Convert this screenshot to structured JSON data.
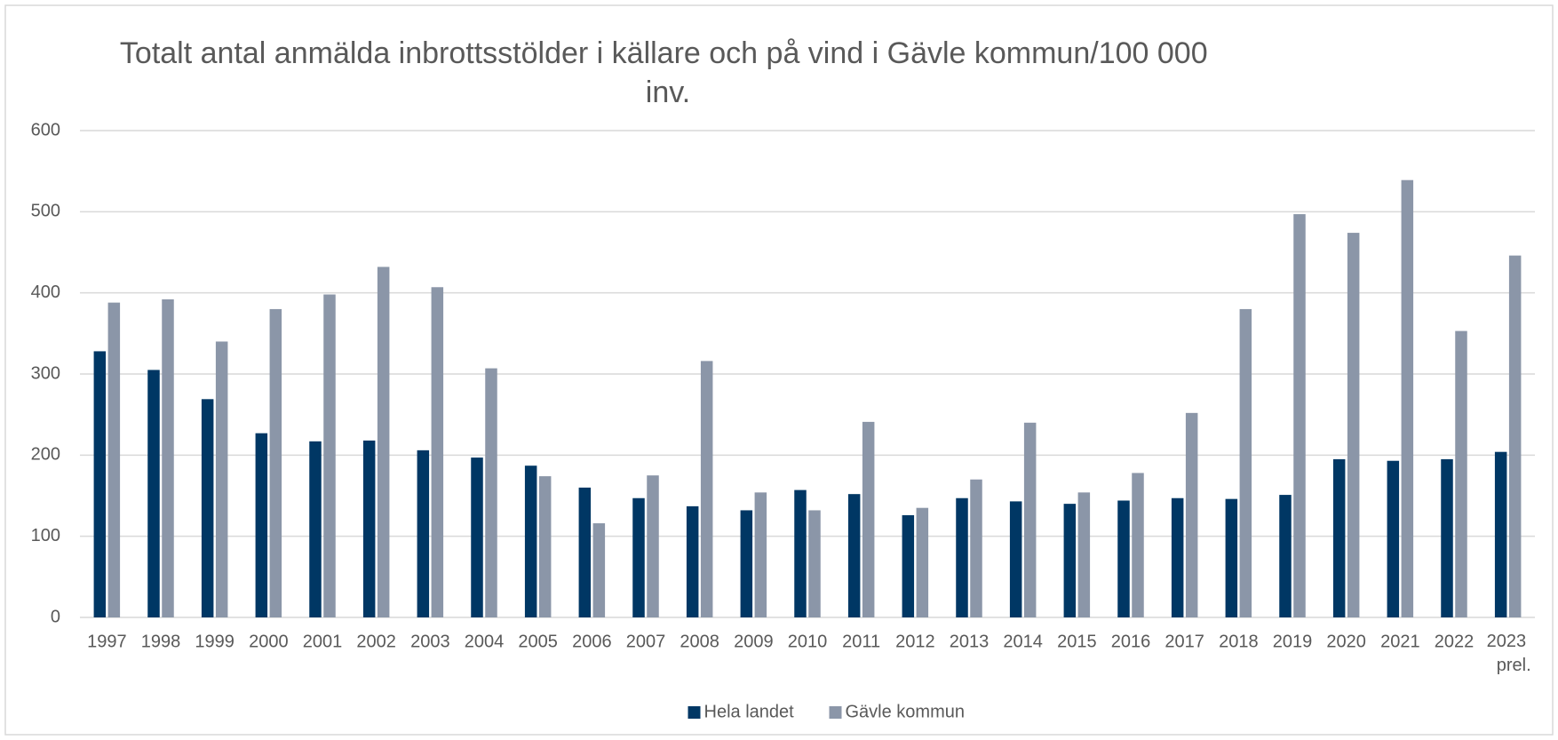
{
  "chart_data": {
    "type": "bar",
    "title": "Totalt antal anmälda inbrottsstölder i källare och på vind i Gävle kommun/100 000 inv.",
    "categories": [
      "1997",
      "1998",
      "1999",
      "2000",
      "2001",
      "2002",
      "2003",
      "2004",
      "2005",
      "2006",
      "2007",
      "2008",
      "2009",
      "2010",
      "2011",
      "2012",
      "2013",
      "2014",
      "2015",
      "2016",
      "2017",
      "2018",
      "2019",
      "2020",
      "2021",
      "2022",
      "2023 prel."
    ],
    "series": [
      {
        "name": "Hela landet",
        "color": "#003764",
        "values": [
          328,
          305,
          269,
          227,
          217,
          218,
          206,
          197,
          187,
          160,
          147,
          137,
          132,
          157,
          152,
          126,
          147,
          143,
          140,
          144,
          147,
          146,
          151,
          195,
          193,
          195,
          204
        ]
      },
      {
        "name": "Gävle kommun",
        "color": "#8b96a8",
        "values": [
          388,
          392,
          340,
          380,
          398,
          432,
          407,
          307,
          174,
          116,
          175,
          316,
          154,
          132,
          241,
          135,
          170,
          240,
          154,
          178,
          252,
          380,
          497,
          474,
          539,
          353,
          446
        ]
      }
    ],
    "ylim": [
      0,
      600
    ],
    "yticks": [
      0,
      100,
      200,
      300,
      400,
      500,
      600
    ],
    "grid": true,
    "legend": "bottom"
  }
}
